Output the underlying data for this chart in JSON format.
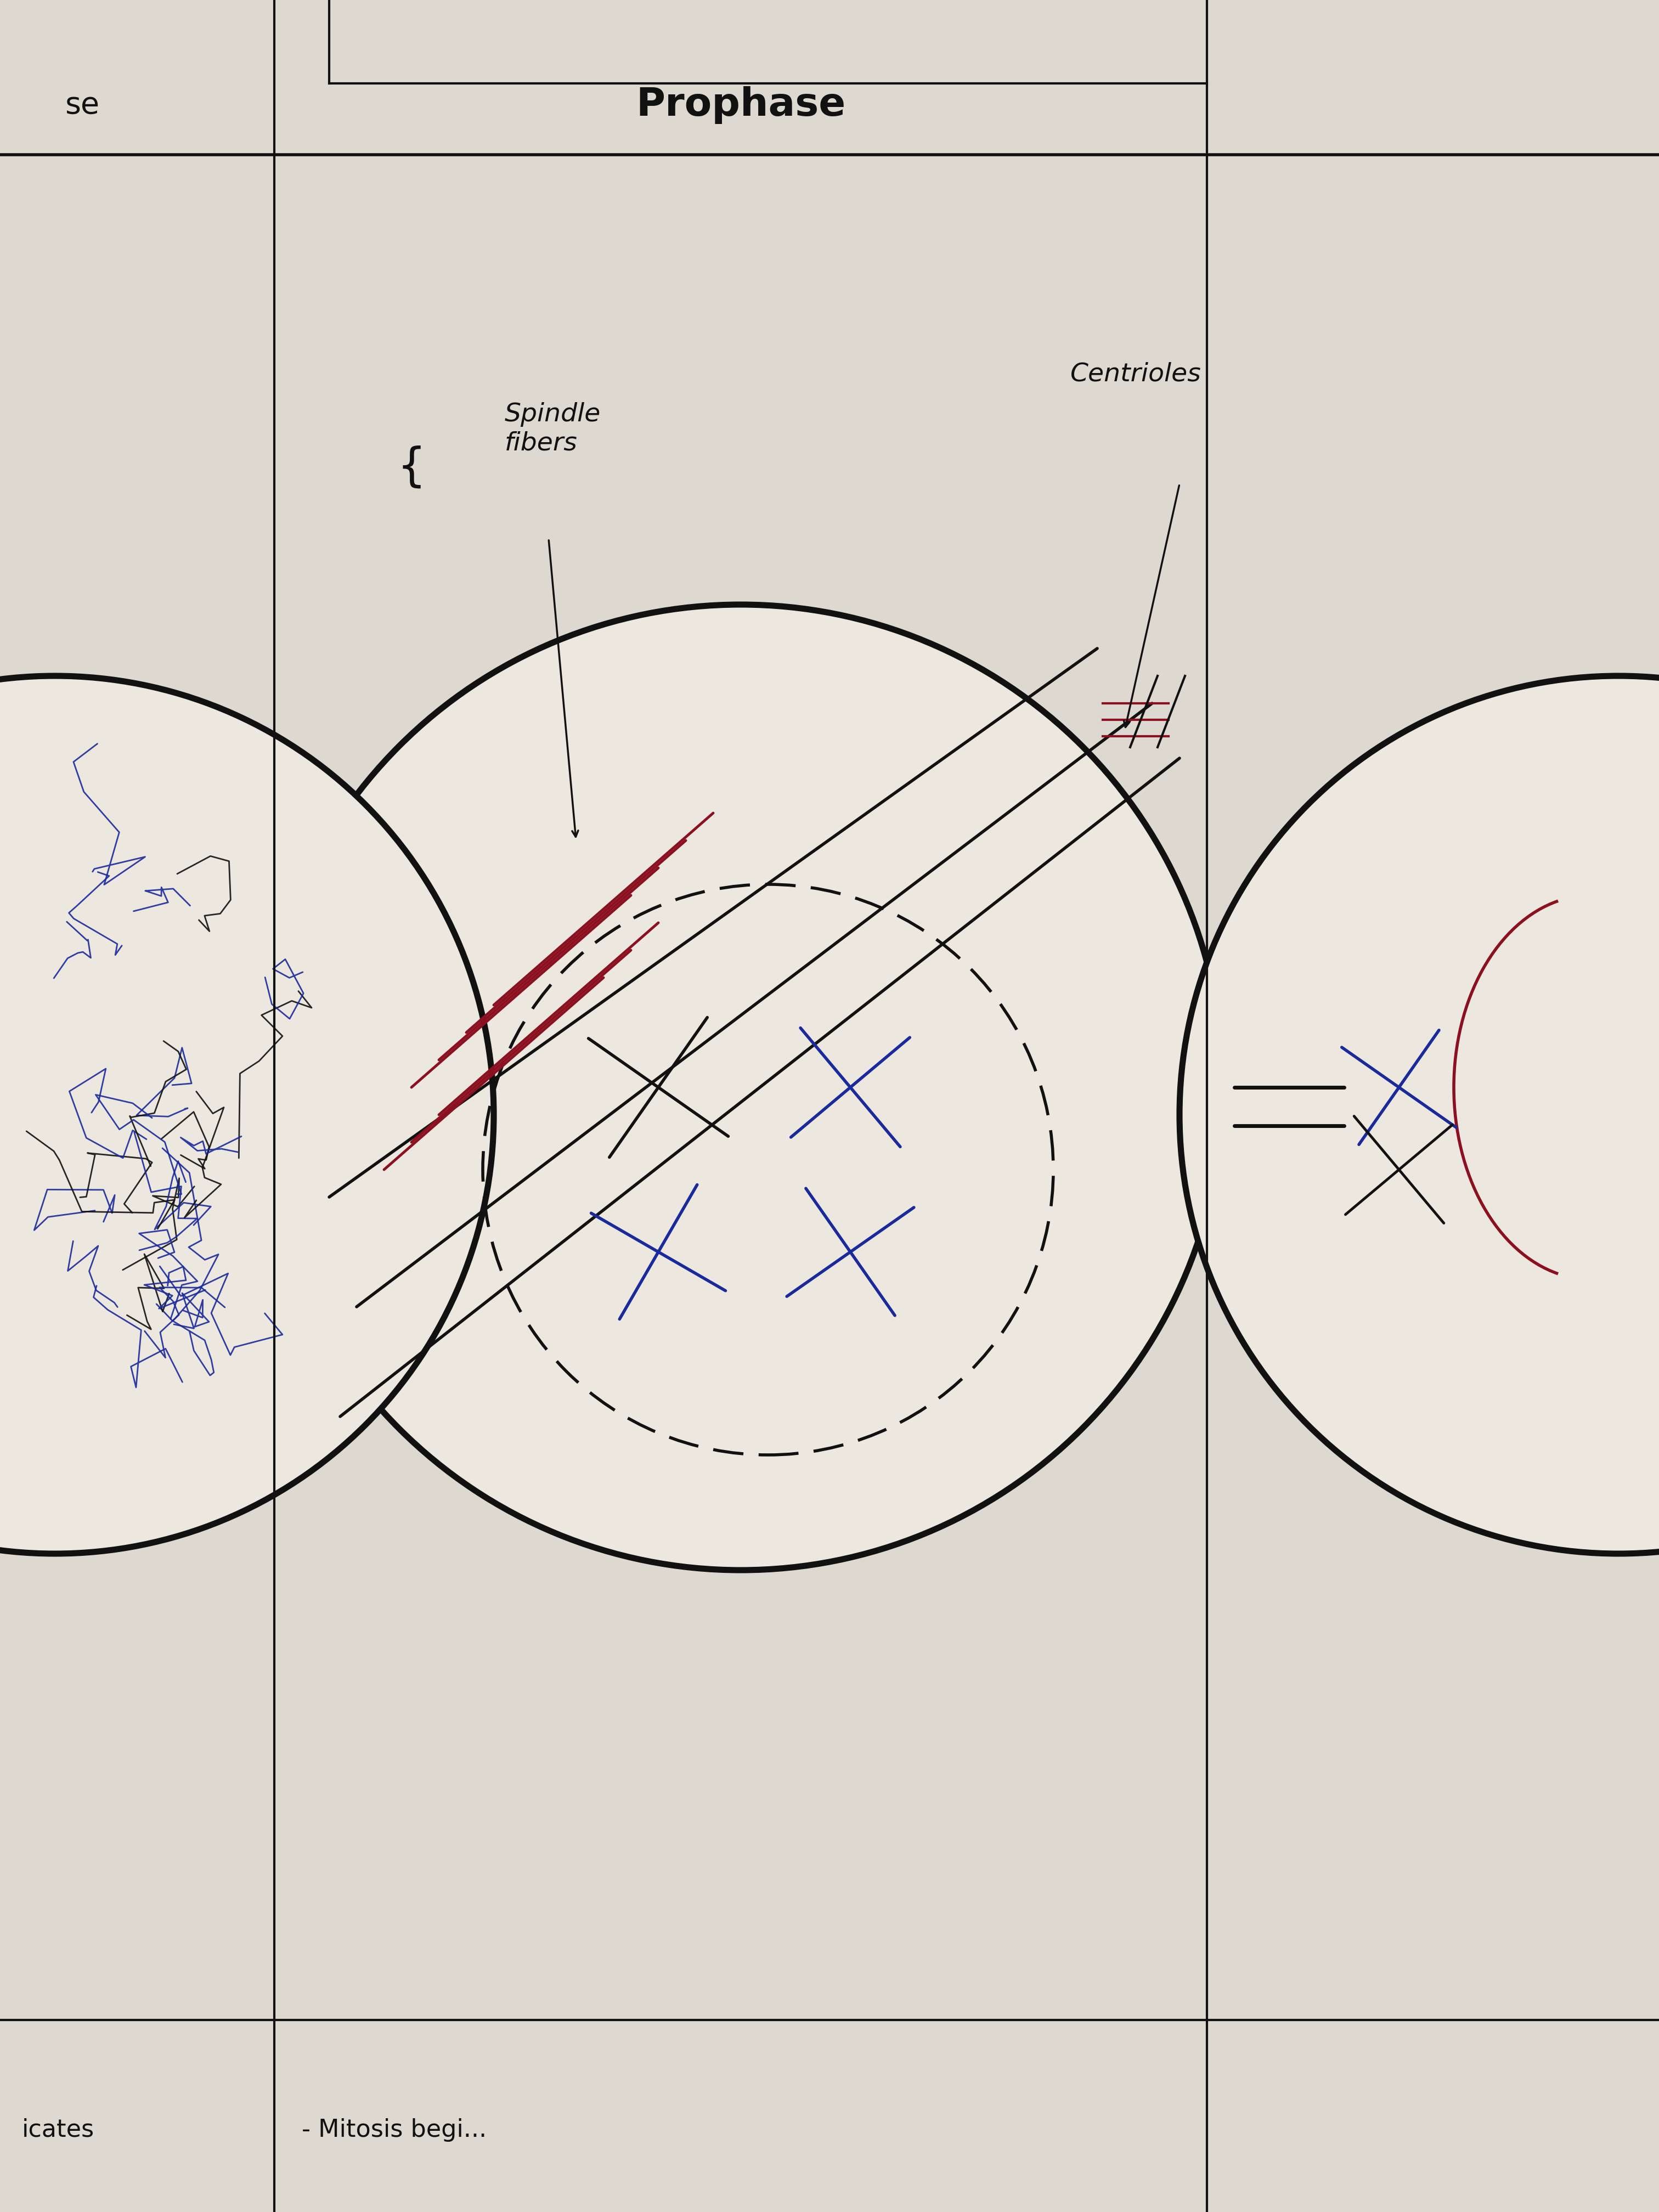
{
  "bg_color": "#ddd9d0",
  "cell_bg": "#ece8e0",
  "title": "Prophase",
  "title_fontsize": 52,
  "title_fontweight": "bold",
  "line_color": "#111111",
  "spindle_color": "#8b1020",
  "chromosome_color_blue": "#1a2a9b",
  "chromosome_color_dark": "#111111",
  "bottom_left_text": "icates",
  "bottom_center_text": "- Mitosis begi...",
  "label_spindle": "Spindle\nfibers",
  "label_centrioles": "Centrioles"
}
